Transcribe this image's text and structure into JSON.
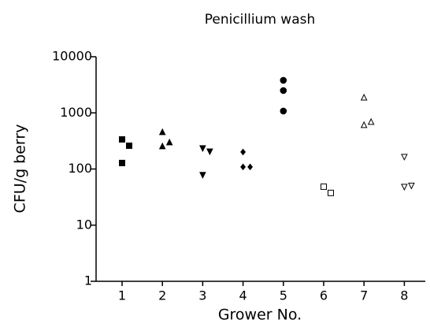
{
  "chart_data": {
    "type": "scatter",
    "title": "Penicillium wash",
    "x_label": "Grower No.",
    "y_label": "CFU/g berry",
    "categories": [
      "1",
      "2",
      "3",
      "4",
      "5",
      "6",
      "7",
      "8"
    ],
    "groups": [
      {
        "marker": "square",
        "filled": true,
        "values": [
          337,
          260,
          128
        ]
      },
      {
        "marker": "triangle-up",
        "filled": true,
        "values": [
          451,
          252,
          296
        ]
      },
      {
        "marker": "triangle-down",
        "filled": true,
        "values": [
          236,
          207,
          79
        ]
      },
      {
        "marker": "diamond",
        "filled": true,
        "values": [
          201,
          109,
          109
        ]
      },
      {
        "marker": "circle",
        "filled": true,
        "values": [
          3800,
          2500,
          1077
        ]
      },
      {
        "marker": "square",
        "filled": false,
        "values": [
          48.5,
          37.5
        ]
      },
      {
        "marker": "triangle-up",
        "filled": false,
        "values": [
          1865,
          603,
          686
        ]
      },
      {
        "marker": "triangle-down",
        "filled": false,
        "values": [
          166,
          48.5,
          51
        ]
      }
    ],
    "color": "#000000",
    "y_scale": "log",
    "ylim": [
      1,
      10000
    ],
    "yticks": [
      1,
      10,
      100,
      1000,
      10000
    ]
  }
}
